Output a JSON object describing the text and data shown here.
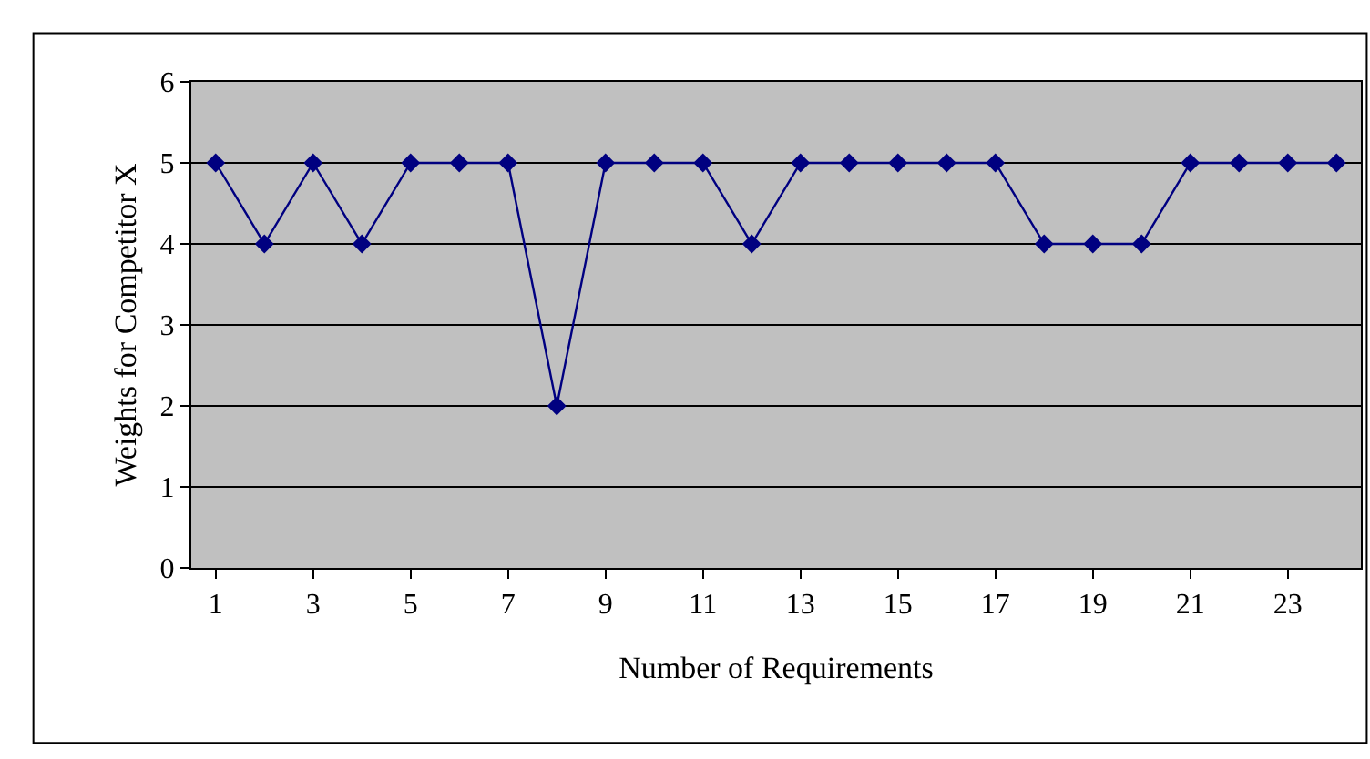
{
  "chart_data": {
    "type": "line",
    "xlabel": "Number of Requirements",
    "ylabel": "Weights for Competitor X",
    "x": [
      1,
      2,
      3,
      4,
      5,
      6,
      7,
      8,
      9,
      10,
      11,
      12,
      13,
      14,
      15,
      16,
      17,
      18,
      19,
      20,
      21,
      22,
      23,
      24
    ],
    "series": [
      {
        "color": "#000080",
        "values": [
          5,
          4,
          5,
          4,
          5,
          5,
          5,
          2,
          5,
          5,
          5,
          4,
          5,
          5,
          5,
          5,
          5,
          4,
          4,
          4,
          5,
          5,
          5,
          5
        ]
      }
    ],
    "xlim": [
      0.5,
      24.5
    ],
    "xticks": [
      1,
      3,
      5,
      7,
      9,
      11,
      13,
      15,
      17,
      19,
      21,
      23
    ],
    "ylim": [
      0,
      6
    ],
    "yticks": [
      0,
      1,
      2,
      3,
      4,
      5,
      6
    ],
    "grid": "y",
    "marker": "diamond",
    "line_style": "solid"
  }
}
